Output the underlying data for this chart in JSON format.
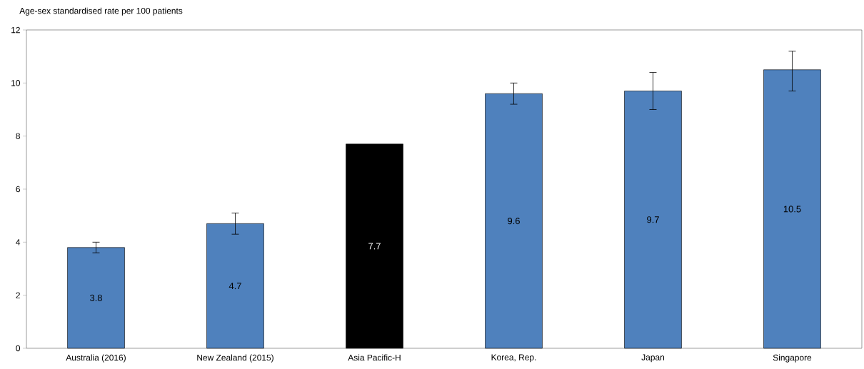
{
  "chart_data": {
    "type": "bar",
    "ylabel": "Age-sex standardised rate per 100 patients",
    "categories": [
      "Australia (2016)",
      "New Zealand (2015)",
      "Asia Pacific-H",
      "Korea, Rep.",
      "Japan",
      "Singapore"
    ],
    "values": [
      3.8,
      4.7,
      7.7,
      9.6,
      9.7,
      10.5
    ],
    "colors": [
      "#4f81bd",
      "#4f81bd",
      "#000000",
      "#4f81bd",
      "#4f81bd",
      "#4f81bd"
    ],
    "errors": [
      [
        3.6,
        4.0
      ],
      [
        4.3,
        5.1
      ],
      null,
      [
        9.2,
        10.0
      ],
      [
        9.0,
        10.4
      ],
      [
        9.7,
        11.2
      ]
    ],
    "data_labels": true,
    "ylim": [
      0,
      12
    ],
    "yticks": [
      0,
      2,
      4,
      6,
      8,
      10,
      12
    ]
  }
}
